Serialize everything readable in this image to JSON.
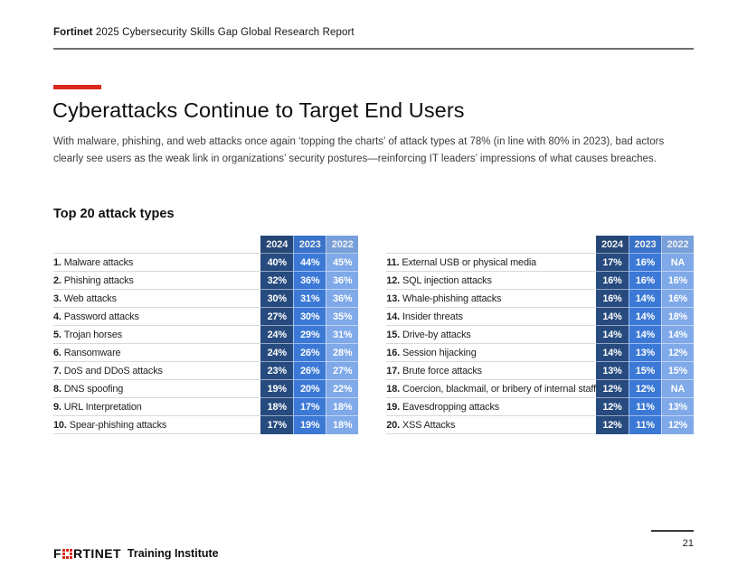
{
  "report_header": {
    "brand": "Fortinet",
    "title": " 2025 Cybersecurity Skills Gap Global Research Report"
  },
  "page": {
    "title": "Cyberattacks Continue to Target End Users",
    "subtitle": "With malware, phishing, and web attacks once again ‘topping the charts’ of attack types at 78% (in line with 80% in 2023), bad actors clearly see users as the weak link in organizations’ security postures—reinforcing IT leaders’ impressions of what causes breaches.",
    "section_title": "Top 20 attack types",
    "page_number": "21"
  },
  "colors": {
    "accent_red": "#DA291C",
    "year_2024": "#274B7E",
    "year_2023": "#3C79D6",
    "year_2022": "#7FA9E8"
  },
  "years": [
    "2024",
    "2023",
    "2022"
  ],
  "tables": [
    {
      "rows": [
        {
          "rank": "1.",
          "label": "Malware attacks",
          "values": [
            "40%",
            "44%",
            "45%"
          ]
        },
        {
          "rank": "2.",
          "label": "Phishing attacks",
          "values": [
            "32%",
            "36%",
            "36%"
          ]
        },
        {
          "rank": "3.",
          "label": "Web attacks",
          "values": [
            "30%",
            "31%",
            "36%"
          ]
        },
        {
          "rank": "4.",
          "label": "Password attacks",
          "values": [
            "27%",
            "30%",
            "35%"
          ]
        },
        {
          "rank": "5.",
          "label": "Trojan horses",
          "values": [
            "24%",
            "29%",
            "31%"
          ]
        },
        {
          "rank": "6.",
          "label": "Ransomware",
          "values": [
            "24%",
            "26%",
            "28%"
          ]
        },
        {
          "rank": "7.",
          "label": "DoS and DDoS attacks",
          "values": [
            "23%",
            "26%",
            "27%"
          ]
        },
        {
          "rank": "8.",
          "label": "DNS spoofing",
          "values": [
            "19%",
            "20%",
            "22%"
          ]
        },
        {
          "rank": "9.",
          "label": "URL Interpretation",
          "values": [
            "18%",
            "17%",
            "18%"
          ]
        },
        {
          "rank": "10.",
          "label": "Spear-phishing attacks",
          "values": [
            "17%",
            "19%",
            "18%"
          ]
        }
      ]
    },
    {
      "rows": [
        {
          "rank": "11.",
          "label": "External USB or physical media",
          "values": [
            "17%",
            "16%",
            "NA"
          ]
        },
        {
          "rank": "12.",
          "label": "SQL injection attacks",
          "values": [
            "16%",
            "16%",
            "16%"
          ]
        },
        {
          "rank": "13.",
          "label": "Whale-phishing attacks",
          "values": [
            "16%",
            "14%",
            "16%"
          ]
        },
        {
          "rank": "14.",
          "label": "Insider threats",
          "values": [
            "14%",
            "14%",
            "18%"
          ]
        },
        {
          "rank": "15.",
          "label": "Drive-by attacks",
          "values": [
            "14%",
            "14%",
            "14%"
          ]
        },
        {
          "rank": "16.",
          "label": "Session hijacking",
          "values": [
            "14%",
            "13%",
            "12%"
          ]
        },
        {
          "rank": "17.",
          "label": "Brute force attacks",
          "values": [
            "13%",
            "15%",
            "15%"
          ]
        },
        {
          "rank": "18.",
          "label": "Coercion, blackmail, or bribery of internal staff",
          "values": [
            "12%",
            "12%",
            "NA"
          ]
        },
        {
          "rank": "19.",
          "label": "Eavesdropping attacks",
          "values": [
            "12%",
            "11%",
            "13%"
          ]
        },
        {
          "rank": "20.",
          "label": "XSS Attacks",
          "values": [
            "12%",
            "11%",
            "12%"
          ]
        }
      ]
    }
  ],
  "footer": {
    "logo_prefix": "F",
    "logo_suffix": "RTINET",
    "label": "Training Institute"
  }
}
